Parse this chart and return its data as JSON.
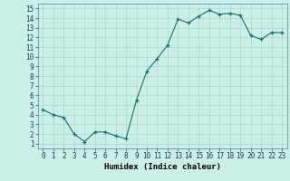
{
  "x": [
    0,
    1,
    2,
    3,
    4,
    5,
    6,
    7,
    8,
    9,
    10,
    11,
    12,
    13,
    14,
    15,
    16,
    17,
    18,
    19,
    20,
    21,
    22,
    23
  ],
  "y": [
    4.5,
    4.0,
    3.7,
    2.0,
    1.2,
    2.2,
    2.2,
    1.8,
    1.5,
    5.5,
    8.5,
    9.8,
    11.2,
    13.9,
    13.5,
    14.2,
    14.8,
    14.4,
    14.5,
    14.3,
    12.2,
    11.8,
    12.5,
    12.5
  ],
  "xlabel": "Humidex (Indice chaleur)",
  "ylabel": "",
  "xlim": [
    -0.5,
    23.5
  ],
  "ylim": [
    0.5,
    15.5
  ],
  "yticks": [
    1,
    2,
    3,
    4,
    5,
    6,
    7,
    8,
    9,
    10,
    11,
    12,
    13,
    14,
    15
  ],
  "xticks": [
    0,
    1,
    2,
    3,
    4,
    5,
    6,
    7,
    8,
    9,
    10,
    11,
    12,
    13,
    14,
    15,
    16,
    17,
    18,
    19,
    20,
    21,
    22,
    23
  ],
  "line_color": "#1a7060",
  "bg_color": "#cceee8",
  "grid_color": "#aad4cc",
  "label_fontsize": 6.5,
  "tick_fontsize": 5.5
}
